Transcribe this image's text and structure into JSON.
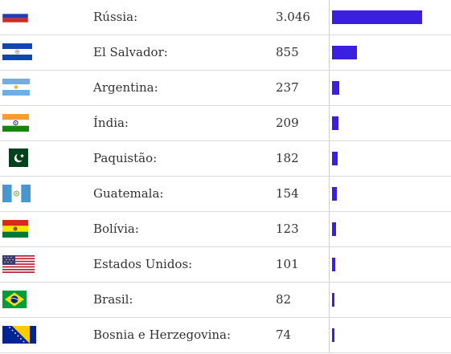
{
  "rows": [
    {
      "flag_icon": "russia-flag-icon",
      "country": "Rússia:",
      "value_label": "3.046",
      "value": 3046
    },
    {
      "flag_icon": "el-salvador-flag-icon",
      "country": "El Salvador:",
      "value_label": "855",
      "value": 855
    },
    {
      "flag_icon": "argentina-flag-icon",
      "country": "Argentina:",
      "value_label": "237",
      "value": 237
    },
    {
      "flag_icon": "india-flag-icon",
      "country": "Índia:",
      "value_label": "209",
      "value": 209
    },
    {
      "flag_icon": "pakistan-flag-icon",
      "country": "Paquistão:",
      "value_label": "182",
      "value": 182
    },
    {
      "flag_icon": "guatemala-flag-icon",
      "country": "Guatemala:",
      "value_label": "154",
      "value": 154
    },
    {
      "flag_icon": "bolivia-flag-icon",
      "country": "Bolívia:",
      "value_label": "123",
      "value": 123
    },
    {
      "flag_icon": "united-states-flag-icon",
      "country": "Estados Unidos:",
      "value_label": "101",
      "value": 101
    },
    {
      "flag_icon": "brazil-flag-icon",
      "country": "Brasil:",
      "value_label": "82",
      "value": 82
    },
    {
      "flag_icon": "bosnia-flag-icon",
      "country": "Bosnia e Herzegovina:",
      "value_label": "74",
      "value": 74
    }
  ],
  "bar_color": "#3b1fe0"
}
